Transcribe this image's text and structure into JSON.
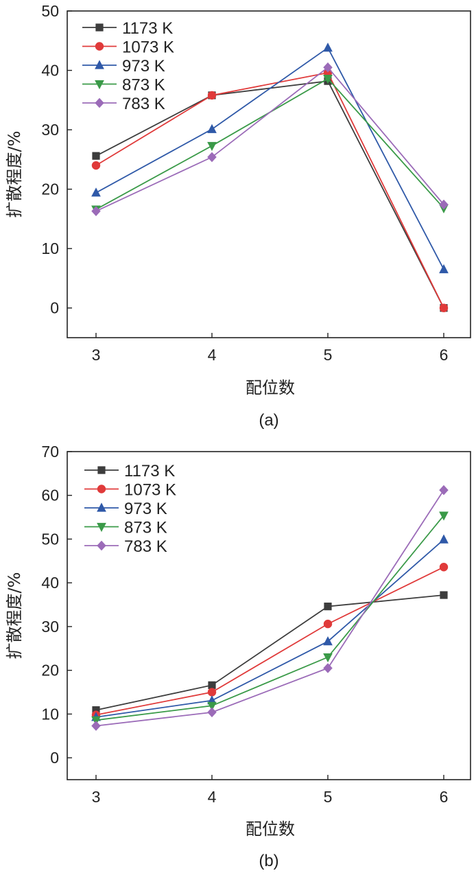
{
  "chart_data": [
    {
      "type": "line",
      "caption": "(a)",
      "title": "",
      "xlabel": "配位数",
      "ylabel": "扩散程度/%",
      "x": [
        3,
        4,
        5,
        6
      ],
      "xticks": [
        "3",
        "4",
        "5",
        "6"
      ],
      "ylim": [
        -5,
        50
      ],
      "yticks": [
        "0",
        "10",
        "20",
        "30",
        "40",
        "50"
      ],
      "legend_position": "top-left",
      "series": [
        {
          "name": "1173 K",
          "marker": "square",
          "color": "#3d3d3d",
          "values": [
            25.6,
            35.8,
            38.2,
            0
          ]
        },
        {
          "name": "1073 K",
          "marker": "circle",
          "color": "#e03a3a",
          "values": [
            24.0,
            35.8,
            39.6,
            0
          ]
        },
        {
          "name": "973 K",
          "marker": "triangle-up",
          "color": "#2f59a8",
          "values": [
            19.4,
            30.1,
            43.8,
            6.5
          ]
        },
        {
          "name": "873 K",
          "marker": "triangle-down",
          "color": "#3a9a48",
          "values": [
            16.6,
            27.3,
            38.6,
            16.8
          ]
        },
        {
          "name": "783 K",
          "marker": "diamond",
          "color": "#9b6bb8",
          "values": [
            16.3,
            25.4,
            40.5,
            17.4
          ]
        }
      ]
    },
    {
      "type": "line",
      "caption": "(b)",
      "title": "",
      "xlabel": "配位数",
      "ylabel": "扩散程度/%",
      "x": [
        3,
        4,
        5,
        6
      ],
      "xticks": [
        "3",
        "4",
        "5",
        "6"
      ],
      "ylim": [
        -5,
        70
      ],
      "yticks": [
        "0",
        "10",
        "20",
        "30",
        "40",
        "50",
        "60",
        "70"
      ],
      "legend_position": "top-left",
      "series": [
        {
          "name": "1173 K",
          "marker": "square",
          "color": "#3d3d3d",
          "values": [
            10.9,
            16.6,
            34.6,
            37.2
          ]
        },
        {
          "name": "1073 K",
          "marker": "circle",
          "color": "#e03a3a",
          "values": [
            9.8,
            15.0,
            30.6,
            43.6
          ]
        },
        {
          "name": "973 K",
          "marker": "triangle-up",
          "color": "#2f59a8",
          "values": [
            9.3,
            13.1,
            26.6,
            49.9
          ]
        },
        {
          "name": "873 K",
          "marker": "triangle-down",
          "color": "#3a9a48",
          "values": [
            8.6,
            11.9,
            23.0,
            55.4
          ]
        },
        {
          "name": "783 K",
          "marker": "diamond",
          "color": "#9b6bb8",
          "values": [
            7.3,
            10.4,
            20.5,
            61.2
          ]
        }
      ]
    }
  ]
}
